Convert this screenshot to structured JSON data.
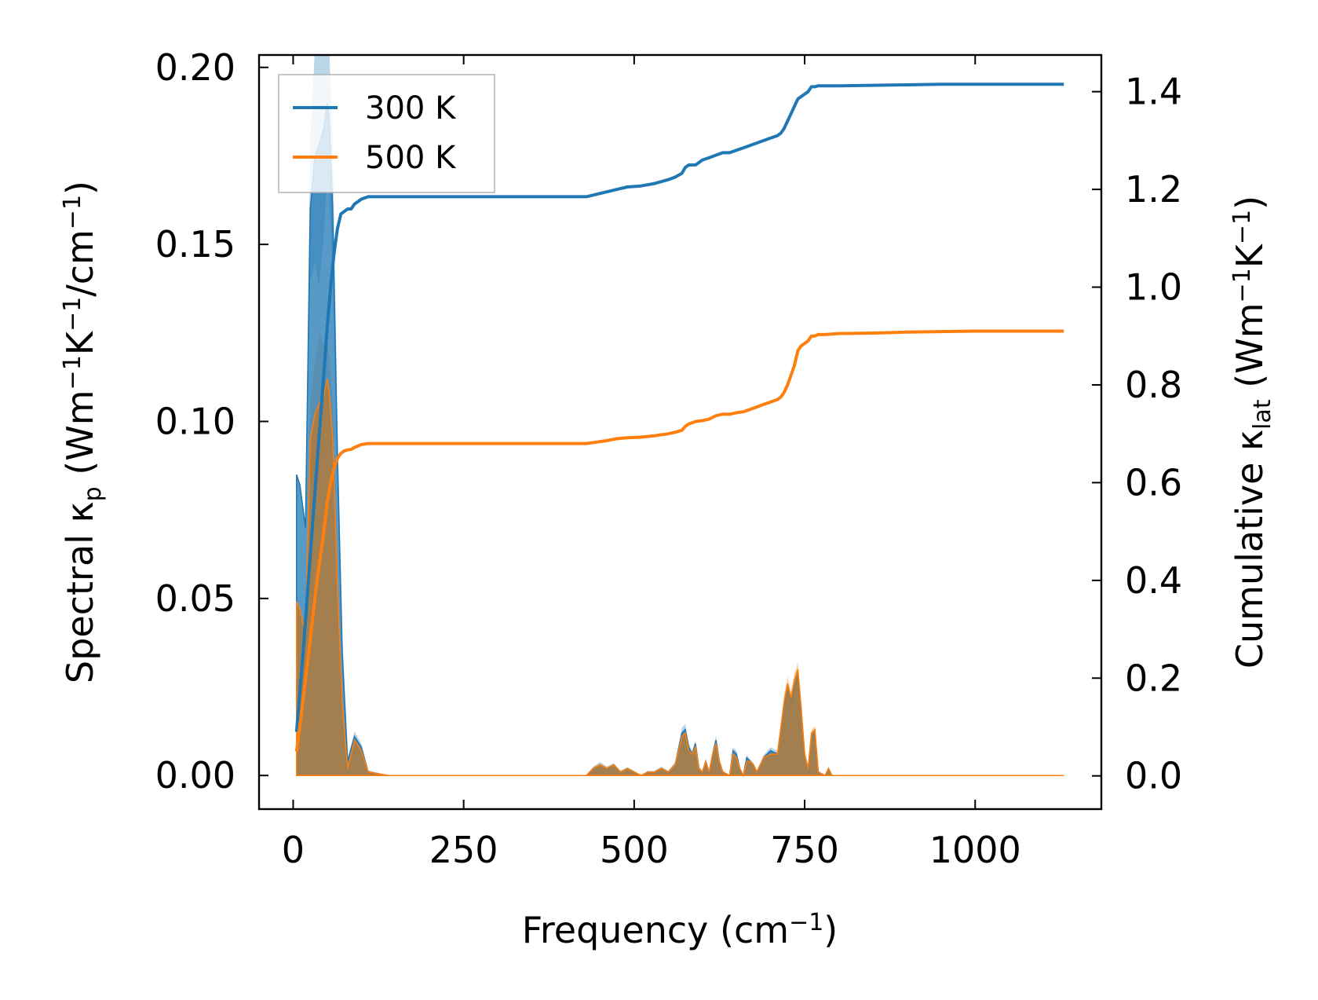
{
  "chart_data": {
    "type": "area",
    "xlabel_text": "Frequency (cm",
    "xlabel_sup": "−1",
    "xlabel_end": ")",
    "ylabel_left": {
      "p1": "Spectral κ",
      "sub": "p",
      "p2": " (Wm",
      "sup1": "−1",
      "p3": "K",
      "sup2": "−1",
      "p4": "/cm",
      "sup3": "−1",
      "p5": ")"
    },
    "ylabel_right": {
      "p1": "Cumulative κ",
      "sub": "lat",
      "p2": " (Wm",
      "sup1": "−1",
      "p3": "K",
      "sup2": "−1",
      "p4": ")"
    },
    "xlim": [
      -50,
      1185
    ],
    "ylim_left": [
      -0.0095,
      0.2035
    ],
    "ylim_right": [
      -0.068,
      1.475
    ],
    "x_ticks": [
      0,
      250,
      500,
      750,
      1000
    ],
    "x_tick_labels": [
      "0",
      "250",
      "500",
      "750",
      "1000"
    ],
    "y_left_ticks": [
      0.0,
      0.05,
      0.1,
      0.15,
      0.2
    ],
    "y_left_tick_labels": [
      "0.00",
      "0.05",
      "0.10",
      "0.15",
      "0.20"
    ],
    "y_right_ticks": [
      0.0,
      0.2,
      0.4,
      0.6,
      0.8,
      1.0,
      1.2,
      1.4
    ],
    "y_right_tick_labels": [
      "0.0",
      "0.2",
      "0.4",
      "0.6",
      "0.8",
      "1.0",
      "1.2",
      "1.4"
    ],
    "grid": false,
    "legend_position": "top-left",
    "colors": {
      "300 K": "#1f77b4",
      "500 K": "#ff7f0e"
    },
    "series": [
      {
        "name": "300 K",
        "color": "#1f77b4",
        "spectral": {
          "x": [
            5,
            10,
            18,
            25,
            32,
            38,
            45,
            50,
            53,
            58,
            65,
            72,
            80,
            90,
            100,
            110,
            140,
            300,
            430,
            440,
            450,
            460,
            470,
            480,
            490,
            500,
            510,
            520,
            530,
            540,
            550,
            560,
            570,
            575,
            580,
            585,
            590,
            595,
            600,
            605,
            610,
            615,
            620,
            625,
            630,
            640,
            645,
            650,
            655,
            660,
            665,
            670,
            675,
            680,
            690,
            700,
            710,
            720,
            725,
            730,
            735,
            740,
            745,
            750,
            755,
            760,
            765,
            770,
            780,
            785,
            790,
            800,
            850,
            900,
            950,
            1000,
            1130
          ],
          "y": [
            0.085,
            0.082,
            0.07,
            0.16,
            0.175,
            0.178,
            0.183,
            0.19,
            0.185,
            0.16,
            0.09,
            0.035,
            0.004,
            0.011,
            0.008,
            0.001,
            0.0,
            0.0,
            0.0,
            0.002,
            0.003,
            0.002,
            0.003,
            0.001,
            0.002,
            0.001,
            0.0,
            0.001,
            0.001,
            0.002,
            0.001,
            0.003,
            0.012,
            0.013,
            0.008,
            0.006,
            0.009,
            0.002,
            0.001,
            0.004,
            0.001,
            0.006,
            0.01,
            0.004,
            0.001,
            0.0,
            0.007,
            0.006,
            0.002,
            0.0,
            0.005,
            0.004,
            0.003,
            0.001,
            0.005,
            0.007,
            0.006,
            0.02,
            0.024,
            0.021,
            0.025,
            0.028,
            0.018,
            0.006,
            0.002,
            0.011,
            0.012,
            0.001,
            0.0,
            0.002,
            0.0,
            0.0,
            0.0,
            0.0,
            0.0,
            0.0,
            0.0
          ],
          "spread": [
            0.0,
            0.0,
            0.0,
            0.02,
            0.03,
            0.04,
            0.03,
            0.02,
            0.02,
            0.02,
            0.01,
            0.005,
            0.001,
            0.0015,
            0.001,
            0.0005,
            0.0,
            0.0,
            0.0,
            0.0005,
            0.0008,
            0.0005,
            0.0005,
            0.0003,
            0.0003,
            0.0003,
            0.0,
            0.0003,
            0.0003,
            0.0005,
            0.0003,
            0.0008,
            0.0015,
            0.0015,
            0.001,
            0.001,
            0.001,
            0.0005,
            0.0003,
            0.0006,
            0.0003,
            0.0008,
            0.0012,
            0.0006,
            0.0003,
            0.0,
            0.001,
            0.001,
            0.0004,
            0.0,
            0.0008,
            0.0006,
            0.0005,
            0.0003,
            0.0008,
            0.001,
            0.001,
            0.002,
            0.002,
            0.002,
            0.002,
            0.002,
            0.0015,
            0.0008,
            0.0004,
            0.001,
            0.001,
            0.0003,
            0.0,
            0.0003,
            0.0,
            0.0,
            0.0,
            0.0,
            0.0,
            0.0,
            0.0
          ]
        },
        "cumulative": {
          "x": [
            5,
            15,
            25,
            35,
            45,
            50,
            55,
            60,
            65,
            70,
            75,
            80,
            85,
            90,
            95,
            100,
            110,
            150,
            300,
            430,
            445,
            460,
            475,
            490,
            510,
            530,
            550,
            560,
            570,
            575,
            580,
            590,
            600,
            610,
            620,
            630,
            640,
            650,
            660,
            670,
            680,
            690,
            700,
            710,
            715,
            720,
            725,
            730,
            735,
            740,
            745,
            750,
            755,
            760,
            765,
            770,
            780,
            800,
            850,
            900,
            950,
            1000,
            1130
          ],
          "y": [
            0.09,
            0.26,
            0.45,
            0.64,
            0.82,
            0.92,
            1.0,
            1.07,
            1.12,
            1.15,
            1.155,
            1.16,
            1.16,
            1.17,
            1.175,
            1.18,
            1.185,
            1.185,
            1.185,
            1.185,
            1.19,
            1.195,
            1.2,
            1.205,
            1.207,
            1.212,
            1.22,
            1.225,
            1.233,
            1.245,
            1.25,
            1.25,
            1.26,
            1.265,
            1.27,
            1.275,
            1.275,
            1.28,
            1.285,
            1.29,
            1.295,
            1.3,
            1.305,
            1.31,
            1.315,
            1.325,
            1.34,
            1.355,
            1.37,
            1.385,
            1.39,
            1.395,
            1.4,
            1.41,
            1.41,
            1.412,
            1.412,
            1.412,
            1.413,
            1.414,
            1.415,
            1.415,
            1.415
          ]
        }
      },
      {
        "name": "500 K",
        "color": "#ff7f0e",
        "spectral": {
          "x": [
            5,
            10,
            18,
            25,
            32,
            38,
            45,
            50,
            53,
            58,
            65,
            72,
            80,
            90,
            100,
            110,
            140,
            300,
            430,
            440,
            450,
            460,
            470,
            480,
            490,
            500,
            510,
            520,
            530,
            540,
            550,
            560,
            570,
            575,
            580,
            585,
            590,
            595,
            600,
            605,
            610,
            615,
            620,
            625,
            630,
            640,
            645,
            650,
            655,
            660,
            665,
            670,
            675,
            680,
            690,
            700,
            710,
            720,
            725,
            730,
            735,
            740,
            745,
            750,
            755,
            760,
            765,
            770,
            780,
            785,
            790,
            800,
            850,
            900,
            950,
            1000,
            1130
          ],
          "y": [
            0.049,
            0.047,
            0.04,
            0.095,
            0.102,
            0.105,
            0.107,
            0.112,
            0.108,
            0.095,
            0.053,
            0.02,
            0.002,
            0.01,
            0.007,
            0.001,
            0.0,
            0.0,
            0.0,
            0.002,
            0.003,
            0.002,
            0.003,
            0.001,
            0.002,
            0.001,
            0.0,
            0.001,
            0.001,
            0.002,
            0.001,
            0.003,
            0.011,
            0.012,
            0.007,
            0.006,
            0.008,
            0.002,
            0.001,
            0.004,
            0.001,
            0.006,
            0.009,
            0.004,
            0.001,
            0.0,
            0.006,
            0.005,
            0.002,
            0.0,
            0.004,
            0.004,
            0.003,
            0.001,
            0.005,
            0.006,
            0.006,
            0.021,
            0.026,
            0.022,
            0.027,
            0.03,
            0.019,
            0.006,
            0.002,
            0.012,
            0.013,
            0.001,
            0.0,
            0.002,
            0.0,
            0.0,
            0.0,
            0.0,
            0.0,
            0.0,
            0.0
          ],
          "spread": [
            0.0,
            0.0,
            0.0,
            0.01,
            0.015,
            0.02,
            0.015,
            0.01,
            0.01,
            0.01,
            0.006,
            0.003,
            0.0005,
            0.001,
            0.001,
            0.0003,
            0.0,
            0.0,
            0.0,
            0.0003,
            0.0005,
            0.0003,
            0.0004,
            0.0002,
            0.0002,
            0.0002,
            0.0,
            0.0002,
            0.0002,
            0.0004,
            0.0002,
            0.0006,
            0.0012,
            0.0012,
            0.0008,
            0.0008,
            0.0008,
            0.0004,
            0.0002,
            0.0005,
            0.0002,
            0.0006,
            0.001,
            0.0005,
            0.0002,
            0.0,
            0.0008,
            0.0008,
            0.0003,
            0.0,
            0.0006,
            0.0005,
            0.0004,
            0.0002,
            0.0006,
            0.0008,
            0.0008,
            0.0018,
            0.002,
            0.0018,
            0.002,
            0.002,
            0.0014,
            0.0006,
            0.0003,
            0.0009,
            0.0009,
            0.0002,
            0.0,
            0.0002,
            0.0,
            0.0,
            0.0,
            0.0,
            0.0,
            0.0,
            0.0
          ]
        },
        "cumulative": {
          "x": [
            5,
            15,
            25,
            35,
            45,
            50,
            55,
            60,
            65,
            70,
            75,
            80,
            85,
            90,
            95,
            100,
            110,
            150,
            300,
            430,
            445,
            460,
            475,
            490,
            510,
            530,
            550,
            560,
            570,
            575,
            580,
            590,
            600,
            610,
            620,
            630,
            640,
            650,
            660,
            670,
            680,
            690,
            700,
            710,
            715,
            720,
            725,
            730,
            735,
            740,
            745,
            750,
            755,
            760,
            765,
            770,
            780,
            800,
            850,
            900,
            950,
            1000,
            1130
          ],
          "y": [
            0.05,
            0.16,
            0.28,
            0.4,
            0.5,
            0.56,
            0.6,
            0.63,
            0.65,
            0.66,
            0.665,
            0.667,
            0.668,
            0.672,
            0.675,
            0.678,
            0.68,
            0.68,
            0.68,
            0.68,
            0.683,
            0.686,
            0.69,
            0.692,
            0.693,
            0.696,
            0.7,
            0.703,
            0.707,
            0.715,
            0.72,
            0.725,
            0.727,
            0.73,
            0.737,
            0.74,
            0.74,
            0.743,
            0.745,
            0.75,
            0.755,
            0.76,
            0.765,
            0.77,
            0.775,
            0.785,
            0.8,
            0.82,
            0.84,
            0.87,
            0.88,
            0.885,
            0.89,
            0.9,
            0.9,
            0.903,
            0.903,
            0.905,
            0.906,
            0.908,
            0.909,
            0.91,
            0.91
          ]
        }
      }
    ]
  }
}
